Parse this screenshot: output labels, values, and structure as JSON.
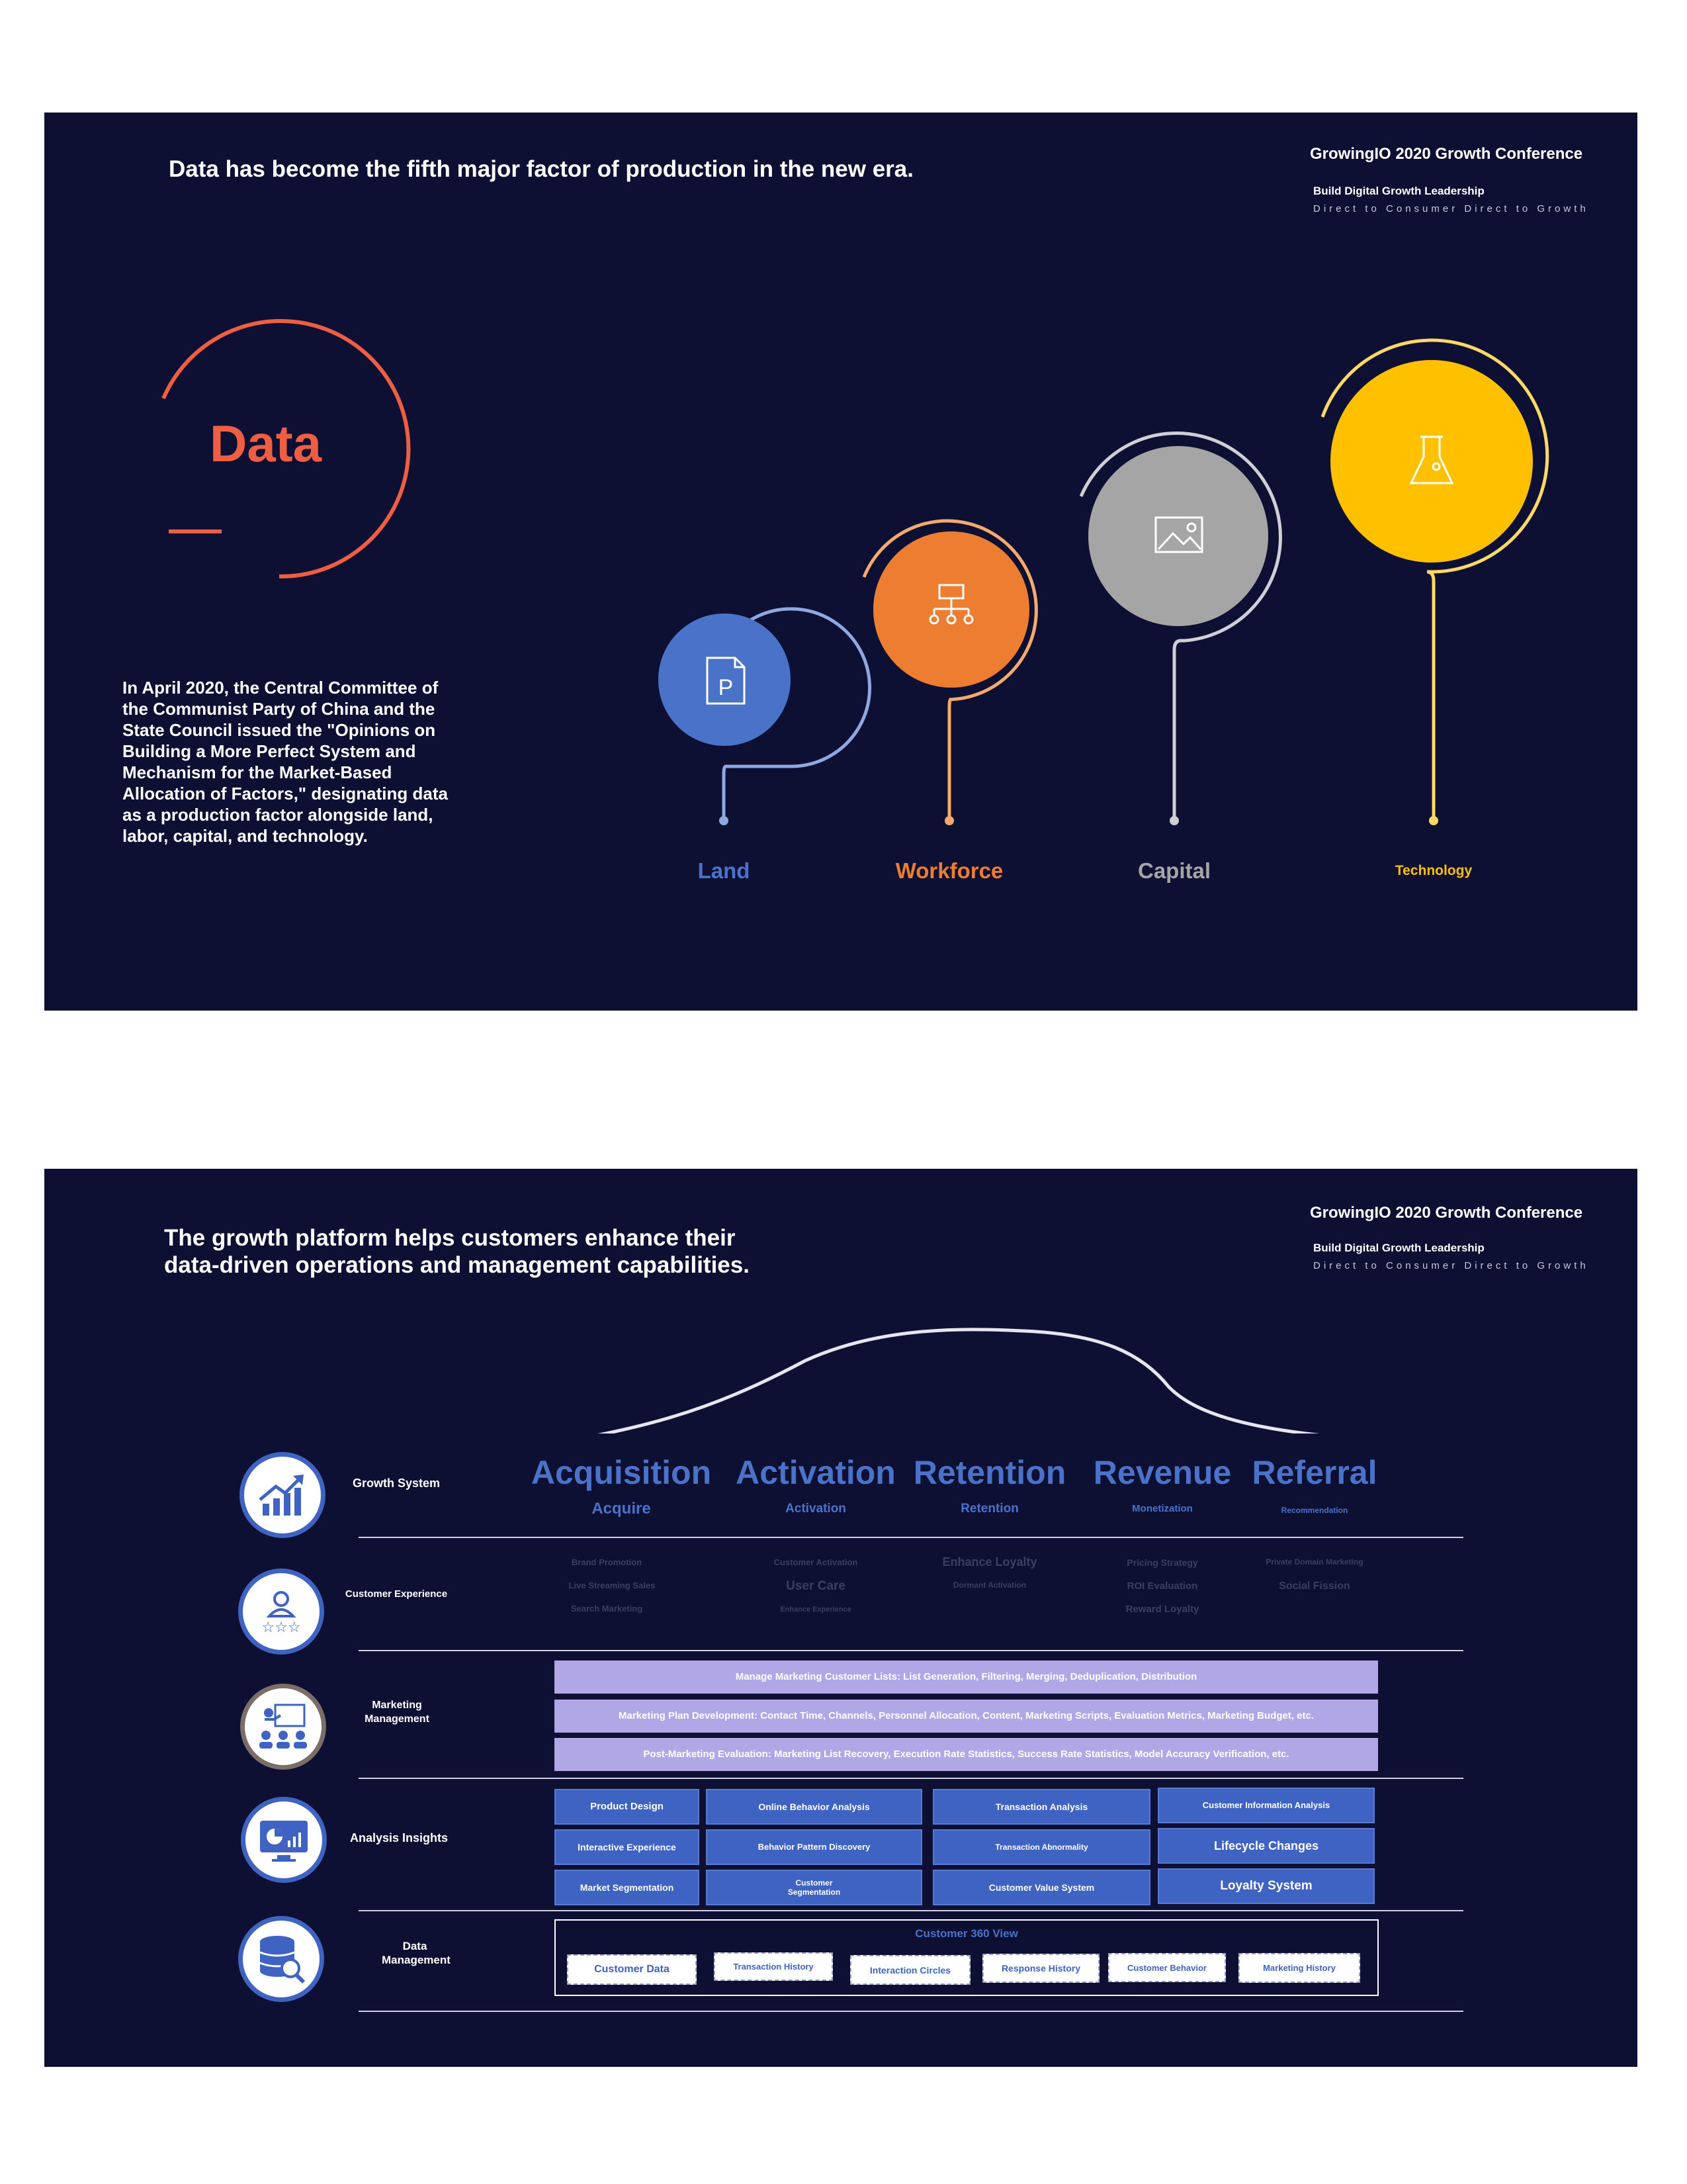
{
  "slide1": {
    "title": "Data has become the fifth major factor of production in the new era.",
    "conference": "GrowingIO 2020 Growth Conference",
    "subtitle": "Build Digital Growth Leadership",
    "tagline": "Direct to Consumer Direct to Growth",
    "heading": "Data",
    "body": "In April 2020, the Central Committee of the Communist Party of China and the State Council issued the \"Opinions on Building a More Perfect System and Mechanism for the Market-Based Allocation of Factors,\" designating data as a production factor alongside land, labor, capital, and technology.",
    "factors": [
      {
        "label": "Land",
        "icon": "document-p-icon",
        "color": "#4a72c8"
      },
      {
        "label": "Workforce",
        "icon": "org-chart-icon",
        "color": "#ed7d31"
      },
      {
        "label": "Capital",
        "icon": "image-icon",
        "color": "#a5a5a5"
      },
      {
        "label": "Technology",
        "icon": "flask-icon",
        "color": "#ffc000"
      }
    ]
  },
  "slide2": {
    "title_line1": "The growth platform helps customers enhance their",
    "title_line2": "data-driven operations and management capabilities.",
    "conference": "GrowingIO 2020 Growth Conference",
    "subtitle": "Build Digital Growth Leadership",
    "tagline": "Direct to Consumer Direct to Growth",
    "rows": [
      {
        "label": "Growth System",
        "icon": "growth-chart-icon"
      },
      {
        "label": "Customer Experience",
        "icon": "user-rating-icon"
      },
      {
        "label": "Marketing Management",
        "icon": "presentation-icon"
      },
      {
        "label": "Analysis Insights",
        "icon": "dashboard-monitor-icon"
      },
      {
        "label": "Data Management",
        "icon": "database-search-icon"
      }
    ],
    "stages": [
      {
        "title": "Acquisition",
        "sub": "Acquire"
      },
      {
        "title": "Activation",
        "sub": "Activation"
      },
      {
        "title": "Retention",
        "sub": "Retention"
      },
      {
        "title": "Revenue",
        "sub": "Monetization"
      },
      {
        "title": "Referral",
        "sub": "Recommendation"
      }
    ],
    "experience": [
      [
        "Brand Promotion",
        "Live Streaming Sales",
        "Search Marketing"
      ],
      [
        "Customer Activation",
        "User Care",
        "Enhance Experience"
      ],
      [
        "Enhance Loyalty",
        "Dormant Activation"
      ],
      [
        "Pricing Strategy",
        "ROI Evaluation",
        "Reward Loyalty"
      ],
      [
        "Private Domain Marketing",
        "Social Fission"
      ]
    ],
    "marketing": [
      "Manage Marketing Customer Lists: List Generation, Filtering, Merging, Deduplication, Distribution",
      "Marketing Plan Development: Contact Time, Channels, Personnel Allocation, Content, Marketing Scripts, Evaluation Metrics, Marketing Budget, etc.",
      "Post-Marketing Evaluation: Marketing List Recovery, Execution Rate Statistics, Success Rate Statistics, Model Accuracy Verification, etc."
    ],
    "analysis": [
      [
        "Product Design",
        "Interactive Experience",
        "Market Segmentation"
      ],
      [
        "Online Behavior Analysis",
        "Behavior Pattern Discovery",
        "Customer Segmentation"
      ],
      [
        "Transaction Analysis",
        "Transaction Abnormality",
        "Customer Value System"
      ],
      [
        "Customer Information Analysis",
        "Lifecycle Changes",
        "Loyalty System"
      ]
    ],
    "data_title": "Customer 360 View",
    "data_items": [
      "Customer Data",
      "Transaction History",
      "Interaction Circles",
      "Response History",
      "Customer Behavior",
      "Marketing History"
    ]
  }
}
